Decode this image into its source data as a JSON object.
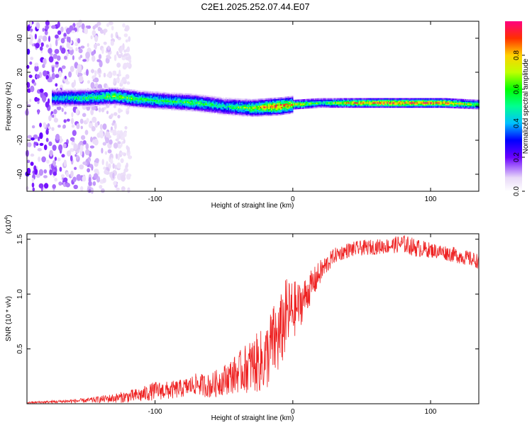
{
  "title": "C2E1.2025.252.07.44.E07",
  "chart_data": [
    {
      "type": "heatmap",
      "id": "spectrogram",
      "xlabel": "Height of straight line (km)",
      "ylabel": "Frequency (Hz)",
      "xlim": [
        -193,
        135
      ],
      "ylim": [
        -50,
        50
      ],
      "xticks": [
        -100,
        0,
        100
      ],
      "yticks": [
        -40,
        -20,
        0,
        20,
        40
      ],
      "colorbar": {
        "label": "Normalized spectral amplitude",
        "range": [
          0,
          1
        ],
        "ticks": [
          "0.0",
          "0.2",
          "0.4",
          "0.6",
          "0.8"
        ],
        "tick_values": [
          0.0,
          0.2,
          0.4,
          0.6,
          0.8
        ]
      },
      "ridge": {
        "description_points_x": [
          -170,
          -150,
          -130,
          -110,
          -90,
          -70,
          -50,
          -30,
          -10,
          0,
          20,
          50,
          80,
          110,
          135
        ],
        "frequency_hz": [
          5,
          5,
          6,
          4,
          3,
          2,
          0,
          -1,
          0,
          1,
          2,
          2,
          2,
          2,
          1
        ],
        "amplitude": [
          0.45,
          0.55,
          0.65,
          0.6,
          0.55,
          0.6,
          0.5,
          0.7,
          0.95,
          0.8,
          0.55,
          0.9,
          0.95,
          0.9,
          0.6
        ]
      },
      "colors": {
        "low": "#d8b8f0",
        "mid": "#00e000",
        "high": "#ff0000"
      }
    },
    {
      "type": "line",
      "id": "snr",
      "xlabel": "Height of straight line (km)",
      "ylabel": "SNR (10 * v/v)",
      "scale_label": "(x10",
      "scale_exp": "4",
      "scale_close": ")",
      "xlim": [
        -193,
        135
      ],
      "ylim": [
        0,
        1.55
      ],
      "xticks": [
        -100,
        0,
        100
      ],
      "yticks": [
        0.5,
        1.0,
        1.5
      ],
      "ytick_labels": [
        "0.5",
        "1.0",
        "1.5"
      ],
      "series": [
        {
          "name": "SNR",
          "color": "#ee2222",
          "envelope_x": [
            -193,
            -170,
            -150,
            -130,
            -110,
            -100,
            -90,
            -80,
            -70,
            -60,
            -50,
            -40,
            -30,
            -20,
            -15,
            -10,
            -5,
            0,
            5,
            10,
            20,
            30,
            40,
            50,
            60,
            70,
            80,
            90,
            100,
            110,
            120,
            135
          ],
          "envelope_mean": [
            0.01,
            0.02,
            0.03,
            0.05,
            0.08,
            0.12,
            0.12,
            0.14,
            0.18,
            0.16,
            0.22,
            0.28,
            0.35,
            0.4,
            0.55,
            0.6,
            0.8,
            0.85,
            0.9,
            1.0,
            1.2,
            1.35,
            1.4,
            1.42,
            1.43,
            1.44,
            1.46,
            1.42,
            1.4,
            1.38,
            1.35,
            1.3
          ],
          "envelope_noise": [
            0.005,
            0.01,
            0.015,
            0.03,
            0.05,
            0.06,
            0.06,
            0.06,
            0.07,
            0.08,
            0.1,
            0.13,
            0.18,
            0.22,
            0.25,
            0.25,
            0.25,
            0.2,
            0.15,
            0.12,
            0.08,
            0.05,
            0.05,
            0.05,
            0.05,
            0.05,
            0.06,
            0.06,
            0.05,
            0.05,
            0.05,
            0.05
          ]
        }
      ]
    }
  ]
}
